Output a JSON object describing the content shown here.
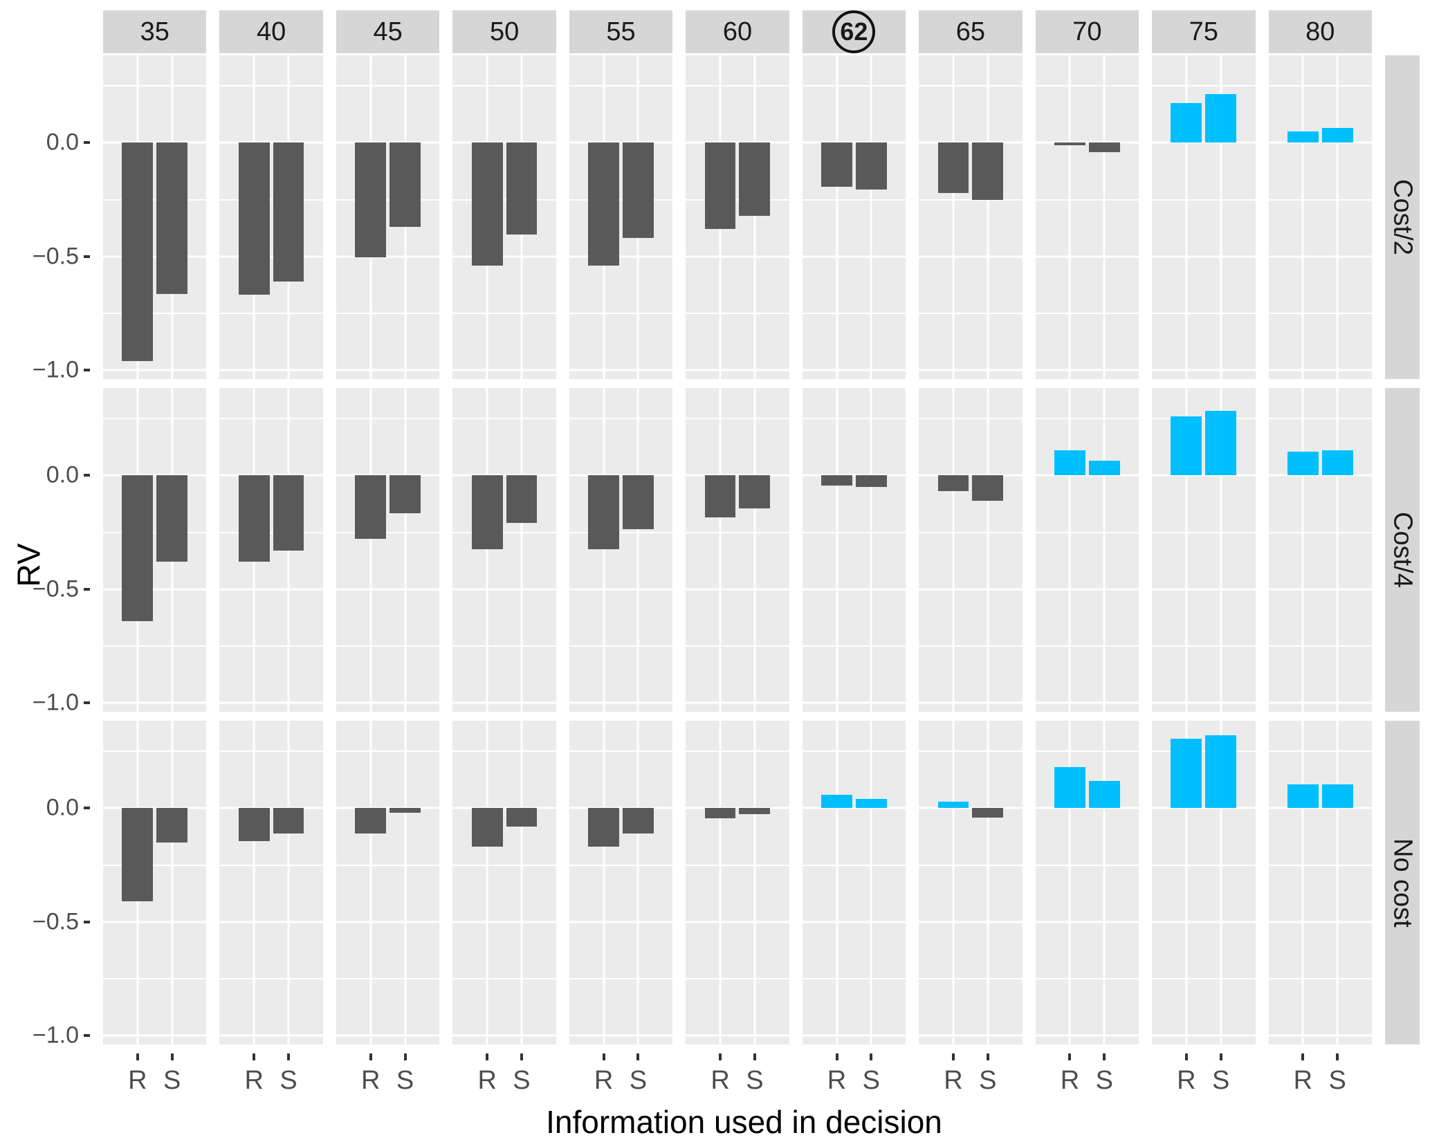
{
  "chart_data": {
    "type": "bar",
    "title": "",
    "xlabel": "Information used in decision",
    "ylabel": "RV",
    "x_categories": [
      "R",
      "S"
    ],
    "col_facets": [
      "35",
      "40",
      "45",
      "50",
      "55",
      "60",
      "62",
      "65",
      "70",
      "75",
      "80"
    ],
    "circled_col_facet": "62",
    "row_facets": [
      "Cost/2",
      "Cost/4",
      "No cost"
    ],
    "ylim": [
      -1.04,
      0.385
    ],
    "yticks": [
      0.0,
      -0.5,
      -1.0
    ],
    "ytick_labels": [
      "0.0",
      "−0.5",
      "−1.0"
    ],
    "yticks_minor": [
      0.25,
      -0.25,
      -0.75
    ],
    "grid": "on",
    "legend_position": "none",
    "colors": {
      "positive_bar": "#00BFFF",
      "negative_bar": "#595959",
      "panel_background": "#EBEBEB",
      "strip_background": "#D6D6D6",
      "gridline": "#FFFFFF"
    },
    "series": [
      {
        "row_facet": "Cost/2",
        "values": [
          {
            "col": "35",
            "R": -0.96,
            "S": -0.665
          },
          {
            "col": "40",
            "R": -0.67,
            "S": -0.61
          },
          {
            "col": "45",
            "R": -0.505,
            "S": -0.37
          },
          {
            "col": "50",
            "R": -0.54,
            "S": -0.405
          },
          {
            "col": "55",
            "R": -0.54,
            "S": -0.42
          },
          {
            "col": "60",
            "R": -0.38,
            "S": -0.32
          },
          {
            "col": "62",
            "R": -0.195,
            "S": -0.205
          },
          {
            "col": "65",
            "R": -0.22,
            "S": -0.25
          },
          {
            "col": "70",
            "R": -0.012,
            "S": -0.04
          },
          {
            "col": "75",
            "R": 0.175,
            "S": 0.215
          },
          {
            "col": "80",
            "R": 0.05,
            "S": 0.065
          }
        ]
      },
      {
        "row_facet": "Cost/4",
        "values": [
          {
            "col": "35",
            "R": -0.64,
            "S": -0.38
          },
          {
            "col": "40",
            "R": -0.38,
            "S": -0.33
          },
          {
            "col": "45",
            "R": -0.28,
            "S": -0.165
          },
          {
            "col": "50",
            "R": -0.325,
            "S": -0.21
          },
          {
            "col": "55",
            "R": -0.325,
            "S": -0.235
          },
          {
            "col": "60",
            "R": -0.185,
            "S": -0.145
          },
          {
            "col": "62",
            "R": -0.045,
            "S": -0.05
          },
          {
            "col": "65",
            "R": -0.07,
            "S": -0.11
          },
          {
            "col": "70",
            "R": 0.11,
            "S": 0.065
          },
          {
            "col": "75",
            "R": 0.26,
            "S": 0.285
          },
          {
            "col": "80",
            "R": 0.105,
            "S": 0.11
          }
        ]
      },
      {
        "row_facet": "No cost",
        "values": [
          {
            "col": "35",
            "R": -0.41,
            "S": -0.15
          },
          {
            "col": "40",
            "R": -0.145,
            "S": -0.11
          },
          {
            "col": "45",
            "R": -0.11,
            "S": -0.02
          },
          {
            "col": "50",
            "R": -0.17,
            "S": -0.08
          },
          {
            "col": "55",
            "R": -0.17,
            "S": -0.11
          },
          {
            "col": "60",
            "R": -0.045,
            "S": -0.025
          },
          {
            "col": "62",
            "R": 0.06,
            "S": 0.04
          },
          {
            "col": "65",
            "R": 0.03,
            "S": -0.04
          },
          {
            "col": "70",
            "R": 0.18,
            "S": 0.12
          },
          {
            "col": "75",
            "R": 0.305,
            "S": 0.32
          },
          {
            "col": "80",
            "R": 0.105,
            "S": 0.105
          }
        ]
      }
    ]
  }
}
